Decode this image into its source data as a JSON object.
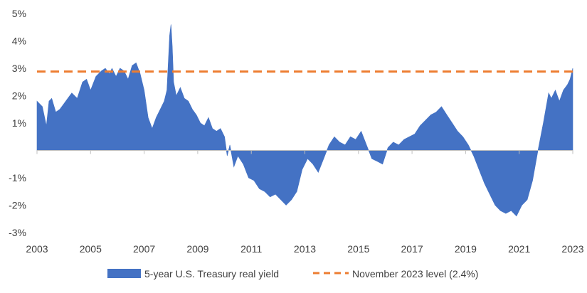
{
  "chart_data": {
    "type": "area",
    "title": "",
    "xlabel": "",
    "ylabel": "",
    "xlim": [
      2003,
      2023
    ],
    "ylim": [
      -3,
      5
    ],
    "x_ticks": [
      "2003",
      "2005",
      "2007",
      "2009",
      "2011",
      "2013",
      "2015",
      "2017",
      "2019",
      "2021",
      "2023"
    ],
    "y_ticks": [
      "5%",
      "4%",
      "3%",
      "2%",
      "1%",
      "-1%",
      "-2%",
      "-3%"
    ],
    "y_tick_values": [
      5,
      4,
      3,
      2,
      1,
      -1,
      -2,
      -3
    ],
    "grid": false,
    "legend_position": "bottom",
    "colors": {
      "series": "#4472C4",
      "reference": "#ED7D31"
    },
    "series": [
      {
        "name": "5-year U.S. Treasury real yield",
        "x": [
          2003.0,
          2003.2,
          2003.35,
          2003.45,
          2003.55,
          2003.7,
          2003.85,
          2004.0,
          2004.15,
          2004.3,
          2004.5,
          2004.7,
          2004.85,
          2005.0,
          2005.2,
          2005.4,
          2005.55,
          2005.7,
          2005.8,
          2005.95,
          2006.1,
          2006.25,
          2006.4,
          2006.55,
          2006.7,
          2006.85,
          2007.0,
          2007.15,
          2007.3,
          2007.45,
          2007.6,
          2007.75,
          2007.85,
          2007.95,
          2008.0,
          2008.05,
          2008.1,
          2008.2,
          2008.35,
          2008.5,
          2008.65,
          2008.8,
          2008.95,
          2009.1,
          2009.25,
          2009.4,
          2009.55,
          2009.7,
          2009.85,
          2010.0,
          2010.1,
          2010.2,
          2010.35,
          2010.5,
          2010.7,
          2010.9,
          2011.1,
          2011.3,
          2011.5,
          2011.7,
          2011.9,
          2012.1,
          2012.3,
          2012.5,
          2012.7,
          2012.9,
          2013.1,
          2013.3,
          2013.5,
          2013.7,
          2013.9,
          2014.1,
          2014.3,
          2014.5,
          2014.7,
          2014.9,
          2015.1,
          2015.3,
          2015.5,
          2015.7,
          2015.9,
          2016.1,
          2016.3,
          2016.5,
          2016.7,
          2016.9,
          2017.1,
          2017.3,
          2017.5,
          2017.7,
          2017.9,
          2018.1,
          2018.3,
          2018.5,
          2018.7,
          2018.9,
          2019.1,
          2019.3,
          2019.5,
          2019.7,
          2019.9,
          2020.1,
          2020.3,
          2020.5,
          2020.7,
          2020.9,
          2021.1,
          2021.3,
          2021.5,
          2021.7,
          2021.9,
          2022.1,
          2022.2,
          2022.35,
          2022.5,
          2022.65,
          2022.8,
          2022.9,
          2023.0
        ],
        "values": [
          1.8,
          1.6,
          0.9,
          1.8,
          1.9,
          1.4,
          1.5,
          1.7,
          1.9,
          2.1,
          1.9,
          2.5,
          2.6,
          2.2,
          2.7,
          2.9,
          3.0,
          2.8,
          3.0,
          2.7,
          3.0,
          2.9,
          2.6,
          3.1,
          3.2,
          2.8,
          2.2,
          1.2,
          0.8,
          1.2,
          1.5,
          1.8,
          2.2,
          4.2,
          4.6,
          3.8,
          2.5,
          2.0,
          2.3,
          1.9,
          1.8,
          1.5,
          1.3,
          1.0,
          0.9,
          1.2,
          0.8,
          0.7,
          0.8,
          0.5,
          -0.2,
          0.2,
          -0.6,
          -0.2,
          -0.5,
          -1.0,
          -1.1,
          -1.4,
          -1.5,
          -1.7,
          -1.6,
          -1.8,
          -2.0,
          -1.8,
          -1.5,
          -0.7,
          -0.3,
          -0.5,
          -0.8,
          -0.3,
          0.2,
          0.5,
          0.3,
          0.2,
          0.5,
          0.4,
          0.7,
          0.2,
          -0.3,
          -0.4,
          -0.5,
          0.1,
          0.3,
          0.2,
          0.4,
          0.5,
          0.6,
          0.9,
          1.1,
          1.3,
          1.4,
          1.6,
          1.3,
          1.0,
          0.7,
          0.5,
          0.2,
          -0.2,
          -0.7,
          -1.2,
          -1.6,
          -2.0,
          -2.2,
          -2.3,
          -2.2,
          -2.4,
          -2.0,
          -1.8,
          -1.1,
          0.0,
          1.0,
          2.1,
          1.9,
          2.2,
          1.8,
          2.2,
          2.4,
          2.6,
          3.0
        ]
      }
    ],
    "reference_line": {
      "name": "November 2023 level (2.4%)",
      "y": 2.4
    }
  }
}
